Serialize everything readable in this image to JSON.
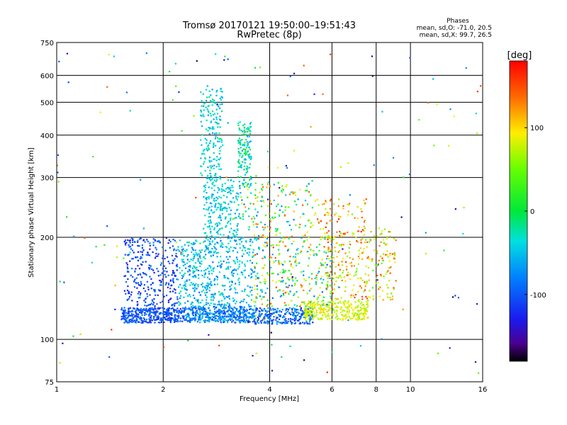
{
  "chart_data": {
    "type": "scatter",
    "title": "Tromsø 20170121 19:50:00–19:51:43",
    "subtitle": "RwPretec (8p)",
    "xlabel": "Frequency [MHz]",
    "ylabel": "Stationary phase Virtual Height [km]",
    "xscale": "log",
    "yscale": "log",
    "xlim": [
      1,
      16
    ],
    "ylim": [
      75,
      750
    ],
    "xticks": [
      "1",
      "2",
      "4",
      "6",
      "8",
      "10",
      "16"
    ],
    "yticks": [
      "75",
      "100",
      "200",
      "300",
      "400",
      "500",
      "600",
      "750"
    ],
    "grid": true,
    "stats": {
      "heading": "Phases",
      "line_o": "mean, sd,O:  -71.0, 20.5",
      "line_x": "mean, sd,X:  99.7, 26.5"
    },
    "colorbar": {
      "label": "[deg]",
      "ticks": [
        "100",
        "0",
        "-100"
      ],
      "tick_values": [
        100,
        0,
        -100
      ],
      "range": [
        -180,
        180
      ],
      "colormap": "rainbow"
    },
    "clusters": [
      {
        "x": [
          1.52,
          2.3
        ],
        "y": [
          112,
          124
        ],
        "phase": [
          -120,
          -80
        ],
        "count": 380
      },
      {
        "x": [
          2.3,
          3.6
        ],
        "y": [
          112,
          125
        ],
        "phase": [
          -110,
          -50
        ],
        "count": 420
      },
      {
        "x": [
          3.6,
          5.3
        ],
        "y": [
          111,
          124
        ],
        "phase": [
          -120,
          -60
        ],
        "count": 260
      },
      {
        "x": [
          5.0,
          7.6
        ],
        "y": [
          114,
          130
        ],
        "phase": [
          60,
          110
        ],
        "count": 300
      },
      {
        "x": [
          1.55,
          2.2
        ],
        "y": [
          125,
          200
        ],
        "phase": [
          -130,
          -80
        ],
        "count": 300
      },
      {
        "x": [
          2.2,
          3.6
        ],
        "y": [
          125,
          200
        ],
        "phase": [
          -90,
          -20
        ],
        "count": 500
      },
      {
        "x": [
          3.6,
          6.0
        ],
        "y": [
          125,
          200
        ],
        "phase": [
          -100,
          160
        ],
        "count": 300
      },
      {
        "x": [
          5.8,
          9.1
        ],
        "y": [
          130,
          210
        ],
        "phase": [
          40,
          160
        ],
        "count": 260
      },
      {
        "x": [
          2.6,
          3.3
        ],
        "y": [
          200,
          300
        ],
        "phase": [
          -70,
          -20
        ],
        "count": 220
      },
      {
        "x": [
          3.3,
          5.3
        ],
        "y": [
          200,
          290
        ],
        "phase": [
          -90,
          150
        ],
        "count": 150
      },
      {
        "x": [
          5.3,
          7.5
        ],
        "y": [
          200,
          260
        ],
        "phase": [
          60,
          170
        ],
        "count": 80
      },
      {
        "x": [
          2.55,
          2.95
        ],
        "y": [
          300,
          560
        ],
        "phase": [
          -70,
          -10
        ],
        "count": 180
      },
      {
        "x": [
          3.25,
          3.55
        ],
        "y": [
          280,
          440
        ],
        "phase": [
          -70,
          20
        ],
        "count": 140
      },
      {
        "x": [
          1.0,
          16.0
        ],
        "y": [
          78,
          700
        ],
        "phase": [
          -170,
          170
        ],
        "count": 170
      }
    ]
  }
}
